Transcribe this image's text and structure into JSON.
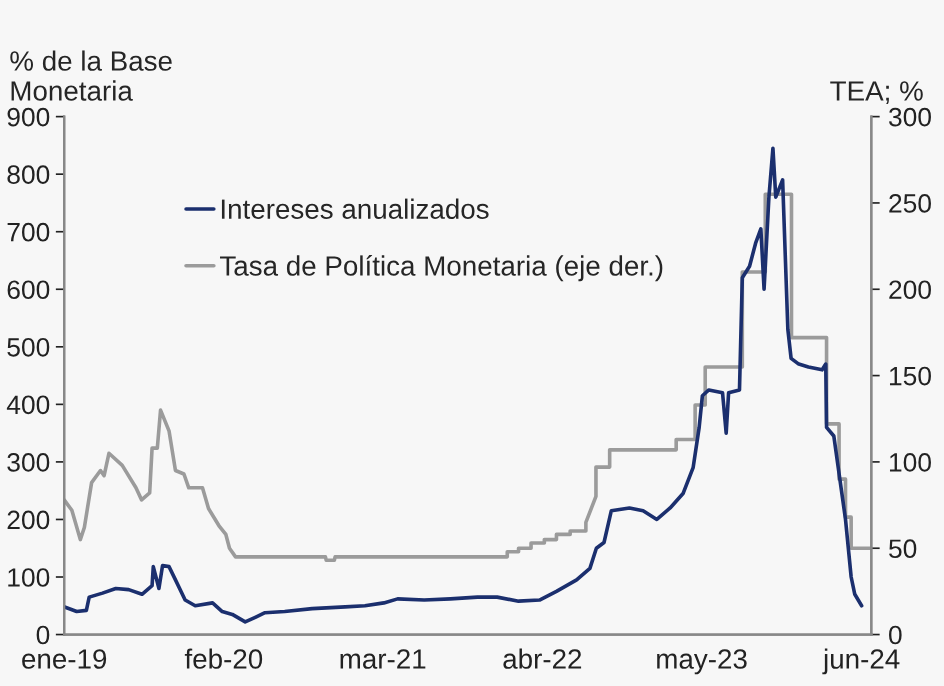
{
  "chart_data": {
    "type": "line",
    "ylabel": "% de la Base\nMonetaria",
    "y2label": "TEA; %",
    "xlim": [
      "2019-01-01",
      "2024-06-25"
    ],
    "xticks": [
      {
        "value": "2019-01-01",
        "label": "ene-19"
      },
      {
        "value": "2020-02-01",
        "label": "feb-20"
      },
      {
        "value": "2021-03-01",
        "label": "mar-21"
      },
      {
        "value": "2022-04-01",
        "label": "abr-22"
      },
      {
        "value": "2023-05-01",
        "label": "may-23"
      },
      {
        "value": "2024-06-01",
        "label": "jun-24"
      }
    ],
    "ylim": [
      0,
      900
    ],
    "yticks": [
      0,
      100,
      200,
      300,
      400,
      500,
      600,
      700,
      800,
      900
    ],
    "y2lim": [
      0,
      300
    ],
    "y2ticks": [
      0,
      50,
      100,
      150,
      200,
      250,
      300
    ],
    "grid": false,
    "legend": "top left",
    "marker": "none",
    "line_style": "solid",
    "series": [
      {
        "name": "Intereses anualizados",
        "color": "#1b2f6e",
        "x": [
          "2019-01-02",
          "2019-02-01",
          "2019-02-25",
          "2019-03-04",
          "2019-04-06",
          "2019-05-09",
          "2019-06-10",
          "2019-07-13",
          "2019-08-07",
          "2019-08-10",
          "2019-08-24",
          "2019-09-02",
          "2019-09-18",
          "2019-10-04",
          "2019-10-28",
          "2019-11-22",
          "2020-01-04",
          "2020-01-28",
          "2020-02-22",
          "2020-03-25",
          "2020-04-19",
          "2020-05-13",
          "2020-07-01",
          "2020-09-07",
          "2020-11-28",
          "2021-01-16",
          "2021-03-04",
          "2021-04-07",
          "2021-06-12",
          "2021-08-16",
          "2021-10-22",
          "2021-12-10",
          "2022-02-01",
          "2022-03-25",
          "2022-05-06",
          "2022-06-25",
          "2022-07-28",
          "2022-08-13",
          "2022-09-01",
          "2022-09-19",
          "2022-11-03",
          "2022-12-07",
          "2023-01-10",
          "2023-02-12",
          "2023-03-16",
          "2023-04-10",
          "2023-04-25",
          "2023-05-03",
          "2023-05-19",
          "2023-06-22",
          "2023-07-01",
          "2023-07-07",
          "2023-08-03",
          "2023-08-10",
          "2023-08-28",
          "2023-09-12",
          "2023-09-25",
          "2023-10-03",
          "2023-10-15",
          "2023-10-25",
          "2023-11-01",
          "2023-11-18",
          "2023-12-01",
          "2023-12-09",
          "2023-12-28",
          "2024-01-21",
          "2024-02-24",
          "2024-03-04",
          "2024-03-06",
          "2024-03-24",
          "2024-04-06",
          "2024-04-22",
          "2024-05-06",
          "2024-05-15",
          "2024-06-01"
        ],
        "values": [
          48,
          40,
          42,
          65,
          72,
          80,
          78,
          70,
          85,
          118,
          80,
          120,
          118,
          95,
          60,
          50,
          55,
          40,
          35,
          22,
          30,
          38,
          40,
          45,
          48,
          50,
          55,
          62,
          60,
          62,
          65,
          65,
          58,
          60,
          75,
          95,
          115,
          150,
          160,
          215,
          220,
          215,
          200,
          220,
          245,
          290,
          360,
          415,
          425,
          420,
          350,
          420,
          425,
          620,
          640,
          680,
          705,
          600,
          760,
          845,
          760,
          790,
          530,
          480,
          470,
          465,
          460,
          470,
          360,
          345,
          280,
          200,
          100,
          70,
          50
        ]
      },
      {
        "name": "Tasa de Política Monetaria (eje der.)",
        "color": "#9b9b9b",
        "axis": "y2",
        "x": [
          "2019-01-01",
          "2019-01-20",
          "2019-02-10",
          "2019-02-20",
          "2019-03-10",
          "2019-04-01",
          "2019-04-10",
          "2019-04-22",
          "2019-05-25",
          "2019-06-28",
          "2019-07-12",
          "2019-08-01",
          "2019-08-07",
          "2019-08-20",
          "2019-08-28",
          "2019-09-18",
          "2019-10-04",
          "2019-10-25",
          "2019-11-06",
          "2019-12-10",
          "2019-12-25",
          "2020-01-20",
          "2020-02-06",
          "2020-02-15",
          "2020-03-01",
          "2020-10-10",
          "2020-10-12",
          "2020-11-01",
          "2020-11-03",
          "2022-01-04",
          "2022-01-04",
          "2022-02-01",
          "2022-02-01",
          "2022-03-04",
          "2022-03-04",
          "2022-04-06",
          "2022-04-06",
          "2022-05-06",
          "2022-05-06",
          "2022-06-09",
          "2022-06-09",
          "2022-07-18",
          "2022-07-18",
          "2022-08-12",
          "2022-08-12",
          "2022-09-15",
          "2022-09-15",
          "2023-02-27",
          "2023-02-27",
          "2023-04-15",
          "2023-04-15",
          "2023-05-10",
          "2023-05-10",
          "2023-08-10",
          "2023-08-10",
          "2023-10-06",
          "2023-10-06",
          "2023-12-10",
          "2023-12-10",
          "2024-03-06",
          "2024-03-06",
          "2024-04-06",
          "2024-04-06",
          "2024-04-22",
          "2024-04-22",
          "2024-05-06",
          "2024-05-06",
          "2024-06-25"
        ],
        "values": [
          78,
          72,
          55,
          62,
          88,
          95,
          92,
          105,
          98,
          85,
          78,
          82,
          108,
          108,
          130,
          118,
          95,
          93,
          85,
          85,
          73,
          63,
          58,
          50,
          45,
          45,
          43,
          43,
          45,
          45,
          48,
          48,
          50,
          50,
          53,
          53,
          55,
          55,
          58,
          58,
          60,
          60,
          65,
          80,
          97,
          97,
          107,
          107,
          113,
          113,
          133,
          133,
          155,
          155,
          210,
          210,
          255,
          255,
          172,
          172,
          122,
          122,
          90,
          90,
          68,
          68,
          50,
          50
        ]
      }
    ]
  }
}
